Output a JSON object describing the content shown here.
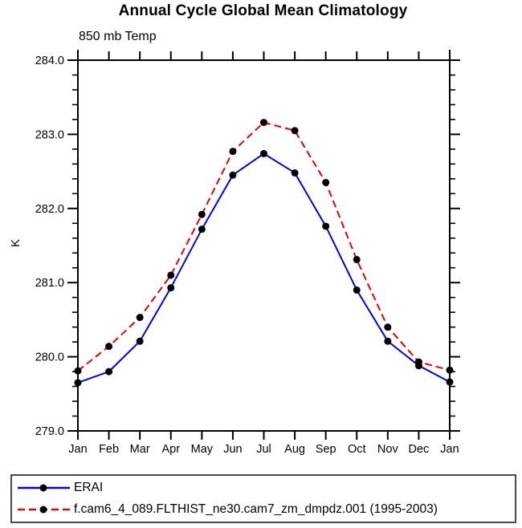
{
  "header": {
    "title": "Annual Cycle Global Mean Climatology",
    "subtitle": "850 mb Temp"
  },
  "chart_data": {
    "type": "line",
    "title": "Annual Cycle Global Mean Climatology",
    "subtitle": "850 mb Temp",
    "xlabel": "",
    "ylabel": "K",
    "categories": [
      "Jan",
      "Feb",
      "Mar",
      "Apr",
      "May",
      "Jun",
      "Jul",
      "Aug",
      "Sep",
      "Oct",
      "Nov",
      "Dec",
      "Jan"
    ],
    "ylim": [
      279.0,
      284.0
    ],
    "ytick_major_step": 1.0,
    "ytick_minor_step": 0.2,
    "grid": false,
    "frame_color": "#000000",
    "legend_position": "bottom-box",
    "marker": "filled-circle",
    "marker_color": "#000000",
    "series": [
      {
        "name": "ERAI",
        "color": "#0000e0",
        "line_style": "solid",
        "values": [
          279.65,
          279.8,
          280.21,
          280.93,
          281.72,
          282.45,
          282.74,
          282.48,
          281.76,
          280.9,
          280.21,
          279.88,
          279.66
        ]
      },
      {
        "name": "f.cam6_4_089.FLTHIST_ne30.cam7_zm_dmpdz.001 (1995-2003)",
        "color": "#e60000",
        "line_style": "dashed",
        "values": [
          279.81,
          280.14,
          280.53,
          281.1,
          281.92,
          282.77,
          283.16,
          283.05,
          282.35,
          281.31,
          280.4,
          279.93,
          279.82
        ]
      }
    ]
  }
}
